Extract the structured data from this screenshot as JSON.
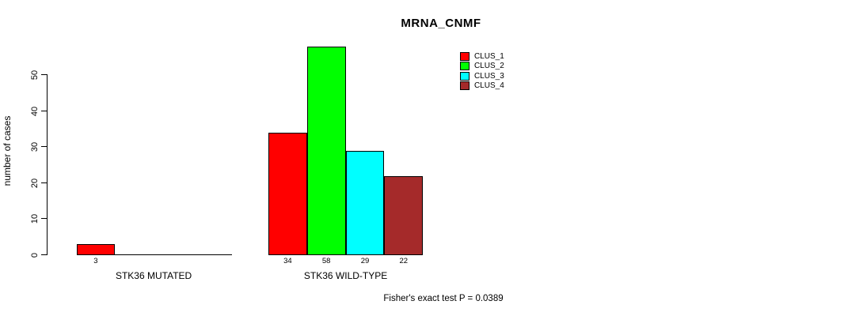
{
  "chart_data": {
    "type": "bar",
    "title": "MRNA_CNMF",
    "ylabel": "number of cases",
    "xlabel": "",
    "yticks": [
      0,
      10,
      20,
      30,
      40,
      50
    ],
    "ylim": [
      0,
      58
    ],
    "grid": false,
    "legend_position": "top-right",
    "series": [
      {
        "name": "CLUS_1",
        "color": "#FF0000"
      },
      {
        "name": "CLUS_2",
        "color": "#00FF00"
      },
      {
        "name": "CLUS_3",
        "color": "#00FFFF"
      },
      {
        "name": "CLUS_4",
        "color": "#A52A2A"
      }
    ],
    "categories": [
      "STK36 MUTATED",
      "STK36 WILD-TYPE"
    ],
    "groups": [
      {
        "label": "STK36 MUTATED",
        "values": [
          3,
          0,
          0,
          0
        ],
        "bar_labels": [
          "3",
          "",
          "",
          ""
        ]
      },
      {
        "label": "STK36 WILD-TYPE",
        "values": [
          34,
          58,
          29,
          22
        ],
        "bar_labels": [
          "34",
          "58",
          "29",
          "22"
        ]
      }
    ],
    "annotation": "Fisher's exact test P = 0.0389"
  }
}
